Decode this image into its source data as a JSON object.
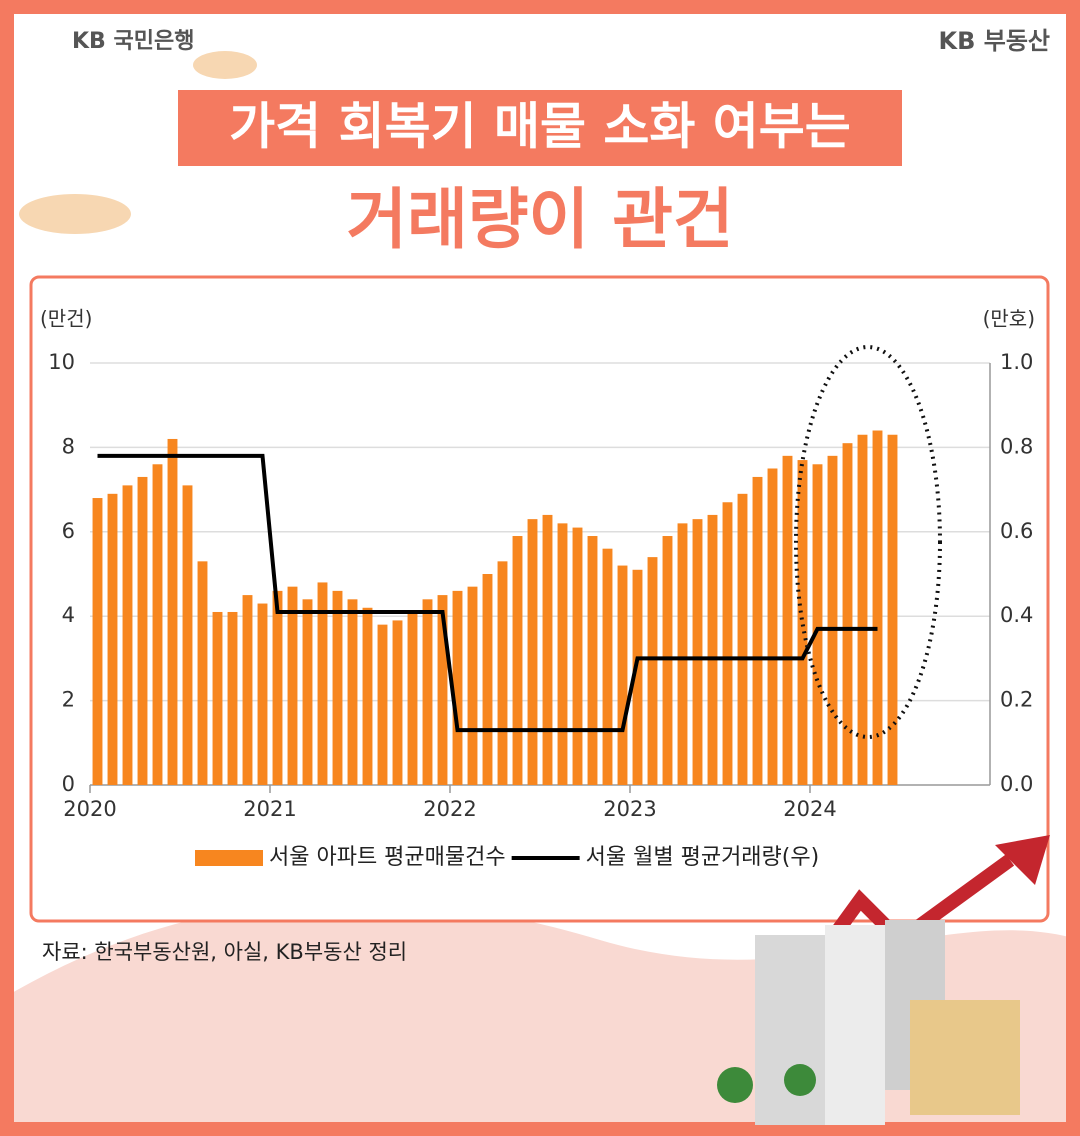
{
  "header": {
    "left_logo": "KB 국민은행",
    "right_logo": "KB 부동산",
    "title_line1": "가격 회복기 매물 소화 여부는",
    "title_line2": "거래량이 관건"
  },
  "chart_data": {
    "type": "bar_line",
    "y_unit": "(만건)",
    "y2_unit": "(만호)",
    "categories": [
      "2020",
      null,
      null,
      null,
      null,
      null,
      null,
      null,
      null,
      null,
      null,
      null,
      "2021",
      null,
      null,
      null,
      null,
      null,
      null,
      null,
      null,
      null,
      null,
      null,
      "2022",
      null,
      null,
      null,
      null,
      null,
      null,
      null,
      null,
      null,
      null,
      null,
      "2023",
      null,
      null,
      null,
      null,
      null,
      null,
      null,
      null,
      null,
      null,
      null,
      "2024",
      null,
      null,
      null,
      null,
      null
    ],
    "series": [
      {
        "name": "서울 아파트 평균매물건수",
        "color": "#f7861f",
        "kind": "bar",
        "values": [
          6.8,
          6.9,
          7.1,
          7.3,
          7.6,
          8.2,
          7.1,
          5.3,
          4.1,
          4.1,
          4.5,
          4.3,
          4.6,
          4.7,
          4.4,
          4.8,
          4.6,
          4.4,
          4.2,
          3.8,
          3.9,
          4.1,
          4.4,
          4.5,
          4.6,
          4.7,
          5.0,
          5.3,
          5.9,
          6.3,
          6.4,
          6.2,
          6.1,
          5.9,
          5.6,
          5.2,
          5.1,
          5.4,
          5.9,
          6.2,
          6.3,
          6.4,
          6.7,
          6.9,
          7.3,
          7.5,
          7.8,
          7.7,
          7.6,
          7.8,
          8.1,
          8.3,
          8.4,
          8.3
        ]
      },
      {
        "name": "서울 월별 평균거래량(우)",
        "color": "#000000",
        "kind": "line",
        "axis": "y2",
        "values": [
          0.78,
          0.78,
          0.78,
          0.78,
          0.78,
          0.78,
          0.78,
          0.78,
          0.78,
          0.78,
          0.78,
          0.78,
          0.41,
          0.41,
          0.41,
          0.41,
          0.41,
          0.41,
          0.41,
          0.41,
          0.41,
          0.41,
          0.41,
          0.41,
          0.13,
          0.13,
          0.13,
          0.13,
          0.13,
          0.13,
          0.13,
          0.13,
          0.13,
          0.13,
          0.13,
          0.13,
          0.3,
          0.3,
          0.3,
          0.3,
          0.3,
          0.3,
          0.3,
          0.3,
          0.3,
          0.3,
          0.3,
          0.3,
          0.37,
          0.37,
          0.37,
          0.37,
          0.37,
          null
        ]
      }
    ],
    "ylim": [
      0,
      10
    ],
    "yticks": [
      0,
      2,
      4,
      6,
      8,
      10
    ],
    "y2lim": [
      0,
      1
    ],
    "y2ticks": [
      {
        "value": 0,
        "label": "0.0"
      },
      0.2,
      0.4,
      0.6,
      0.8,
      {
        "value": 1,
        "label": "1.0"
      }
    ],
    "grid": true,
    "legend": "bottom"
  },
  "footer": {
    "source": "자료: 한국부동산원, 아실, KB부동산 정리"
  }
}
